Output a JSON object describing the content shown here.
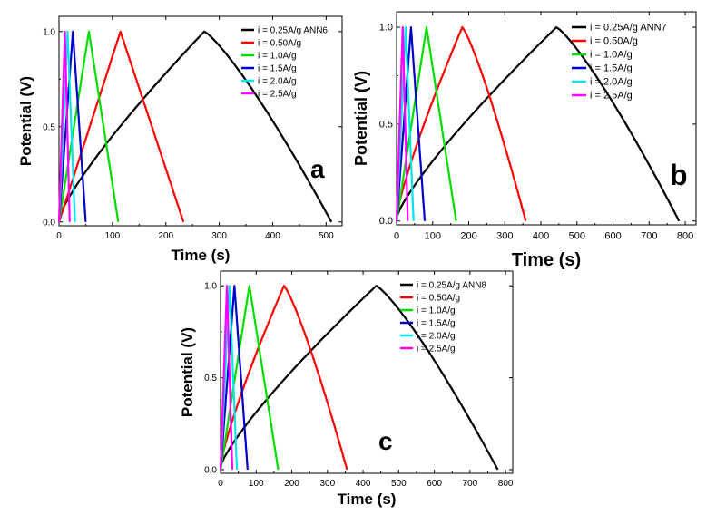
{
  "chart_data": [
    {
      "type": "line",
      "panel_label": "a",
      "xlabel": "Time (s)",
      "ylabel": "Potential (V)",
      "xlim": [
        0,
        530
      ],
      "ylim": [
        -0.02,
        1.08
      ],
      "xticks": [
        "0",
        "100",
        "200",
        "300",
        "400",
        "500"
      ],
      "yticks": [
        "0.0",
        "0.5",
        "1.0"
      ],
      "legend_position": "top-right",
      "series": [
        {
          "name": "i = 0.25A/g ANN6",
          "color": "#000000",
          "t_peak": 272,
          "t_end": 510,
          "curved": true
        },
        {
          "name": "i = 0.50A/g",
          "color": "#ff0000",
          "t_peak": 115,
          "t_end": 233,
          "curved": false
        },
        {
          "name": "i = 1.0A/g",
          "color": "#00dd00",
          "t_peak": 56,
          "t_end": 111,
          "curved": false
        },
        {
          "name": "i = 1.5A/g",
          "color": "#0000cc",
          "t_peak": 26,
          "t_end": 50,
          "curved": false
        },
        {
          "name": "i = 2.0A/g",
          "color": "#00e5ee",
          "t_peak": 16,
          "t_end": 30,
          "curved": false
        },
        {
          "name": "i = 2.5A/g",
          "color": "#ff00ff",
          "t_peak": 11,
          "t_end": 20,
          "curved": false
        }
      ]
    },
    {
      "type": "line",
      "panel_label": "b",
      "xlabel": "Time (s)",
      "ylabel": "Potential (V)",
      "xlim": [
        0,
        830
      ],
      "ylim": [
        -0.02,
        1.08
      ],
      "xticks": [
        "0",
        "100",
        "200",
        "300",
        "400",
        "500",
        "600",
        "700",
        "800"
      ],
      "yticks": [
        "0.0",
        "0.5",
        "1.0"
      ],
      "legend_position": "top-right",
      "series": [
        {
          "name": "i = 0.25A/g  ANN7",
          "color": "#000000",
          "t_peak": 443,
          "t_end": 783,
          "curved": true
        },
        {
          "name": "i = 0.50A/g",
          "color": "#ff0000",
          "t_peak": 182,
          "t_end": 358,
          "curved": true
        },
        {
          "name": "i = 1.0A/g",
          "color": "#00dd00",
          "t_peak": 83,
          "t_end": 165,
          "curved": false
        },
        {
          "name": "i = 1.5A/g",
          "color": "#0000cc",
          "t_peak": 40,
          "t_end": 78,
          "curved": false
        },
        {
          "name": "i = 2.0A/g",
          "color": "#00e5ee",
          "t_peak": 25,
          "t_end": 47,
          "curved": false
        },
        {
          "name": "i = 2.5A/g",
          "color": "#ff00ff",
          "t_peak": 17,
          "t_end": 31,
          "curved": false
        }
      ]
    },
    {
      "type": "line",
      "panel_label": "c",
      "xlabel": "Time (s)",
      "ylabel": "Potential (V)",
      "xlim": [
        0,
        820
      ],
      "ylim": [
        -0.02,
        1.08
      ],
      "xticks": [
        "0",
        "100",
        "200",
        "300",
        "400",
        "500",
        "600",
        "700",
        "800"
      ],
      "yticks": [
        "0.0",
        "0.5",
        "1.0"
      ],
      "legend_position": "top-right",
      "series": [
        {
          "name": "i = 0.25A/g ANN8",
          "color": "#000000",
          "t_peak": 437,
          "t_end": 778,
          "curved": true
        },
        {
          "name": "i = 0.50A/g",
          "color": "#ff0000",
          "t_peak": 178,
          "t_end": 355,
          "curved": true
        },
        {
          "name": "i = 1.0A/g",
          "color": "#00dd00",
          "t_peak": 81,
          "t_end": 162,
          "curved": false
        },
        {
          "name": "i = 1.5A/g",
          "color": "#0000cc",
          "t_peak": 39,
          "t_end": 76,
          "curved": false
        },
        {
          "name": "i = 2.0A/g",
          "color": "#00e5ee",
          "t_peak": 25,
          "t_end": 46,
          "curved": false
        },
        {
          "name": "i = 2.5A/g",
          "color": "#ff00ff",
          "t_peak": 18,
          "t_end": 33,
          "curved": false
        }
      ]
    }
  ]
}
